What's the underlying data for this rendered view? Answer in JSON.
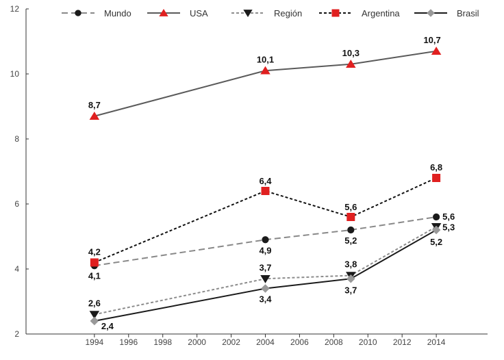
{
  "chart_data": {
    "type": "line",
    "x": [
      1994,
      2004,
      2009,
      2014
    ],
    "xlim": [
      1990,
      2017
    ],
    "ylim": [
      2,
      12
    ],
    "xticks": [
      1994,
      1996,
      1998,
      2000,
      2002,
      2004,
      2006,
      2008,
      2010,
      2012,
      2014
    ],
    "yticks": [
      2,
      4,
      6,
      8,
      10,
      12
    ],
    "grid": false,
    "legend_position": "top",
    "series": [
      {
        "name": "Mundo",
        "values": [
          4.1,
          4.9,
          5.2,
          5.6
        ],
        "labels": [
          "4,1",
          "4,9",
          "5,2",
          "5,6"
        ],
        "color": "#888888",
        "marker": "circle",
        "marker_color": "#1a1a1a",
        "dash": "long-dash"
      },
      {
        "name": "USA",
        "values": [
          8.7,
          10.1,
          10.3,
          10.7
        ],
        "labels": [
          "8,7",
          "10,1",
          "10,3",
          "10,7"
        ],
        "color": "#5a5a5a",
        "marker": "triangle-up",
        "marker_color": "#e02020",
        "dash": "solid"
      },
      {
        "name": "Región",
        "values": [
          2.6,
          3.7,
          3.8,
          5.3
        ],
        "labels": [
          "2,6",
          "3,7",
          "3,8",
          "5,3"
        ],
        "color": "#8c8c8c",
        "marker": "triangle-down",
        "marker_color": "#1a1a1a",
        "dash": "short-dash"
      },
      {
        "name": "Argentina",
        "values": [
          4.2,
          6.4,
          5.6,
          6.8
        ],
        "labels": [
          "4,2",
          "6,4",
          "5,6",
          "6,8"
        ],
        "color": "#111111",
        "marker": "square",
        "marker_color": "#e02020",
        "dash": "short-dash"
      },
      {
        "name": "Brasil",
        "values": [
          2.4,
          3.4,
          3.7,
          5.2
        ],
        "labels": [
          "2,4",
          "3,4",
          "3,7",
          "5,2"
        ],
        "color": "#1a1a1a",
        "marker": "diamond",
        "marker_color": "#999999",
        "dash": "solid"
      }
    ]
  }
}
